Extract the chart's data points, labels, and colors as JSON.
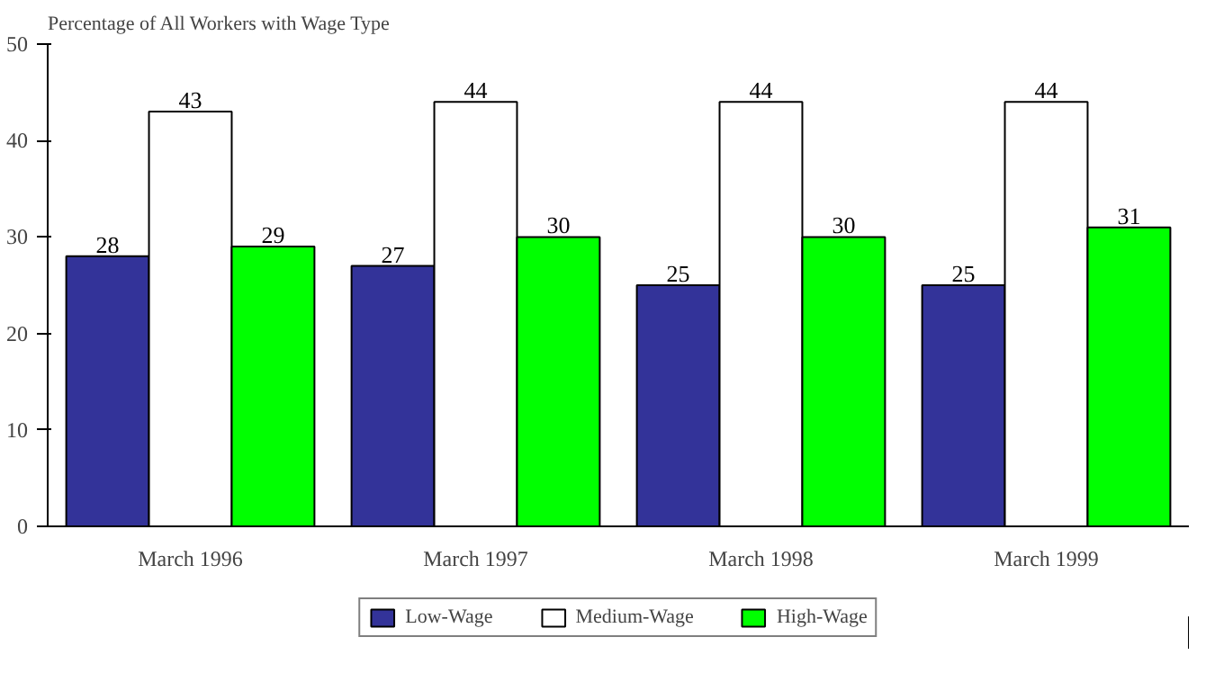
{
  "chart_data": {
    "type": "bar",
    "ylabel": "Percentage of All Workers with Wage Type",
    "categories": [
      "March 1996",
      "March 1997",
      "March 1998",
      "March 1999"
    ],
    "series": [
      {
        "name": "Low-Wage",
        "color": "#333399",
        "values": [
          28,
          27,
          25,
          25
        ]
      },
      {
        "name": "Medium-Wage",
        "color": "#ffffff",
        "values": [
          43,
          44,
          44,
          44
        ]
      },
      {
        "name": "High-Wage",
        "color": "#00ff00",
        "values": [
          29,
          30,
          30,
          31
        ]
      }
    ],
    "ylim": [
      0,
      50
    ],
    "yticks": [
      0,
      10,
      20,
      30,
      40,
      50
    ],
    "grid": false,
    "legend": "bottom",
    "data_labels": true
  }
}
